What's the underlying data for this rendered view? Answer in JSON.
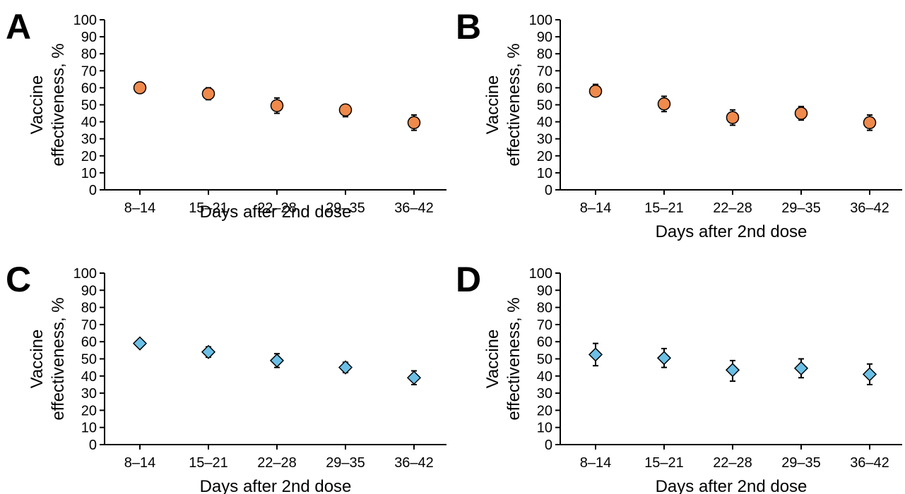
{
  "chart_data": [
    {
      "panel": "A",
      "type": "scatter",
      "marker": "circle",
      "marker_color": "#ef8a4c",
      "categories": [
        "8–14",
        "15–21",
        "22–28",
        "29–35",
        "36–42"
      ],
      "values": [
        60,
        56.5,
        49.5,
        47,
        39.5
      ],
      "ci_low": [
        57,
        53,
        45,
        43,
        35
      ],
      "ci_high": [
        62,
        60,
        54,
        50,
        44
      ],
      "xlabel": "Days after 2nd dose",
      "ylabel": [
        "Vaccine",
        "effectiveness, %"
      ],
      "yticks": [
        "0",
        "10",
        "20",
        "30",
        "40",
        "50",
        "60",
        "70",
        "80",
        "90",
        "100"
      ],
      "ylim": [
        0,
        100
      ],
      "grid": false
    },
    {
      "panel": "B",
      "type": "scatter",
      "marker": "circle",
      "marker_color": "#ef8a4c",
      "categories": [
        "8–14",
        "15–21",
        "22–28",
        "29–35",
        "36–42"
      ],
      "values": [
        58,
        50.5,
        42.5,
        45,
        39.5
      ],
      "ci_low": [
        55,
        46,
        38,
        41,
        35
      ],
      "ci_high": [
        62,
        55,
        47,
        49,
        44
      ],
      "xlabel": "Days after 2nd dose",
      "ylabel": [
        "Vaccine",
        "effectiveness, %"
      ],
      "yticks": [
        "0",
        "10",
        "20",
        "30",
        "40",
        "50",
        "60",
        "70",
        "80",
        "90",
        "100"
      ],
      "ylim": [
        0,
        100
      ],
      "grid": false
    },
    {
      "panel": "C",
      "type": "scatter",
      "marker": "diamond",
      "marker_color": "#6cc0e6",
      "categories": [
        "8–14",
        "15–21",
        "22–28",
        "29–35",
        "36–42"
      ],
      "values": [
        59,
        54,
        49,
        45,
        39
      ],
      "ci_low": [
        57,
        51,
        45,
        42,
        35
      ],
      "ci_high": [
        61,
        57,
        53,
        48,
        43
      ],
      "xlabel": "Days after 2nd dose",
      "ylabel": [
        "Vaccine",
        "effectiveness, %"
      ],
      "yticks": [
        "0",
        "10",
        "20",
        "30",
        "40",
        "50",
        "60",
        "70",
        "80",
        "90",
        "100"
      ],
      "ylim": [
        0,
        100
      ],
      "grid": false
    },
    {
      "panel": "D",
      "type": "scatter",
      "marker": "diamond",
      "marker_color": "#6cc0e6",
      "categories": [
        "8–14",
        "15–21",
        "22–28",
        "29–35",
        "36–42"
      ],
      "values": [
        52.5,
        50.5,
        43.5,
        44.5,
        41
      ],
      "ci_low": [
        46,
        45,
        37,
        39,
        35
      ],
      "ci_high": [
        59,
        56,
        49,
        50,
        47
      ],
      "xlabel": "Days after 2nd dose",
      "ylabel": [
        "Vaccine",
        "effectiveness, %"
      ],
      "yticks": [
        "0",
        "10",
        "20",
        "30",
        "40",
        "50",
        "60",
        "70",
        "80",
        "90",
        "100"
      ],
      "ylim": [
        0,
        100
      ],
      "grid": false
    }
  ]
}
